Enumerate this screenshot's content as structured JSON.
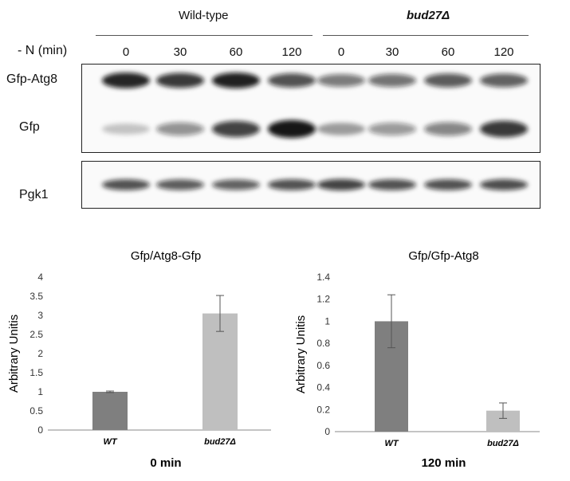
{
  "blot": {
    "groups": [
      {
        "label": "Wild-type",
        "italic": false
      },
      {
        "label": "bud27Δ",
        "italic": true
      }
    ],
    "time_axis_label": "- N (min)",
    "lanes": [
      "0",
      "30",
      "60",
      "120",
      "0",
      "30",
      "60",
      "120"
    ],
    "row_labels": [
      "Gfp-Atg8",
      "Gfp",
      "Pgk1"
    ],
    "band_intensity": {
      "Gfp-Atg8": [
        0.9,
        0.82,
        0.92,
        0.72,
        0.55,
        0.58,
        0.68,
        0.66
      ],
      "Gfp": [
        0.22,
        0.45,
        0.78,
        0.96,
        0.38,
        0.42,
        0.5,
        0.82
      ],
      "Pgk1": [
        0.72,
        0.68,
        0.66,
        0.72,
        0.78,
        0.72,
        0.72,
        0.74
      ]
    },
    "band_color": "#111111"
  },
  "chart_data": [
    {
      "type": "bar",
      "title": "Gfp/Atg8-Gfp",
      "ylabel": "Arbitrary Unitis",
      "xlabel": "0 min",
      "categories": [
        "WT",
        "bud27Δ"
      ],
      "values": [
        1.0,
        3.05
      ],
      "errors": [
        0.02,
        0.47
      ],
      "colors": [
        "#7f7f7f",
        "#bfbfbf"
      ],
      "ylim": [
        0,
        4
      ],
      "yticks": [
        "0",
        "0.5",
        "1",
        "1.5",
        "2",
        "2.5",
        "3",
        "3.5",
        "4"
      ],
      "grid": false
    },
    {
      "type": "bar",
      "title": "Gfp/Gfp-Atg8",
      "ylabel": "Arbitrary Unitis",
      "xlabel": "120 min",
      "categories": [
        "WT",
        "bud27Δ"
      ],
      "values": [
        1.0,
        0.19
      ],
      "errors": [
        0.24,
        0.07
      ],
      "colors": [
        "#7f7f7f",
        "#bfbfbf"
      ],
      "ylim": [
        0,
        1.4
      ],
      "yticks": [
        "0",
        "0.2",
        "0.4",
        "0.6",
        "0.8",
        "1",
        "1.2",
        "1.4"
      ],
      "grid": false
    }
  ]
}
